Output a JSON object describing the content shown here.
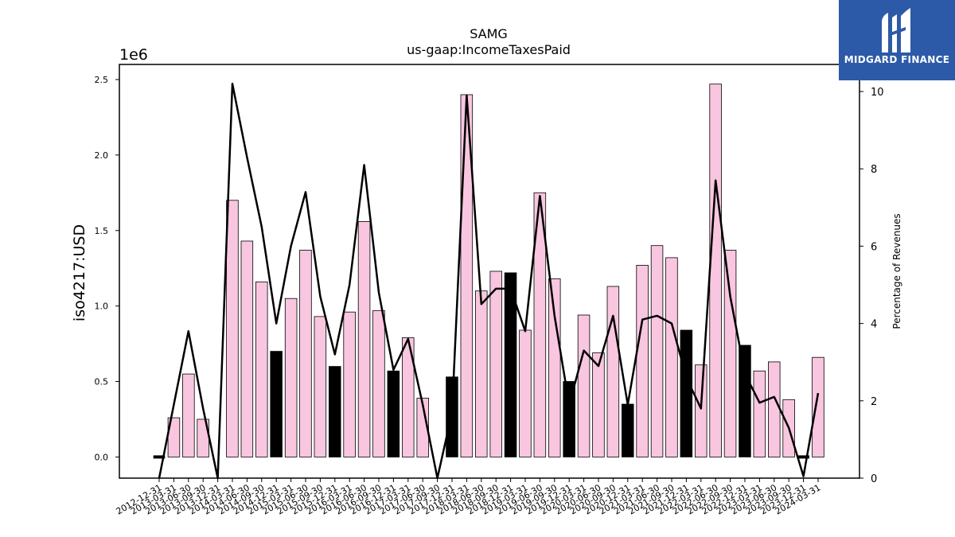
{
  "chart_data": {
    "type": "bar",
    "title": "SAMG",
    "subtitle": "us-gaap:IncomeTaxesPaid",
    "ylabel": "iso4217:USD",
    "y_multiplier_label": "1e6",
    "y2label": "Percentage of Revenues",
    "ylim": [
      -0.14,
      2.6
    ],
    "y_ticks": [
      "0.0",
      "0.5",
      "1.0",
      "1.5",
      "2.0",
      "2.5"
    ],
    "y2lim": [
      0,
      10.7
    ],
    "y2_ticks": [
      "0",
      "2",
      "4",
      "6",
      "8",
      "10"
    ],
    "categories": [
      "2012-12-31",
      "2013-03-31",
      "2013-06-30",
      "2013-09-30",
      "2013-12-31",
      "2014-03-31",
      "2014-06-30",
      "2014-09-30",
      "2014-12-31",
      "2015-03-31",
      "2015-06-30",
      "2015-09-30",
      "2015-12-31",
      "2016-03-31",
      "2016-06-30",
      "2016-09-30",
      "2016-12-31",
      "2017-03-31",
      "2017-06-30",
      "2017-09-30",
      "2017-12-31",
      "2018-03-31",
      "2018-06-30",
      "2018-09-30",
      "2018-12-31",
      "2019-03-31",
      "2019-06-30",
      "2019-09-30",
      "2019-12-31",
      "2020-03-31",
      "2020-06-30",
      "2020-09-30",
      "2020-12-31",
      "2021-03-31",
      "2021-06-30",
      "2021-09-30",
      "2021-12-31",
      "2022-03-31",
      "2022-06-30",
      "2022-09-30",
      "2022-12-31",
      "2023-03-31",
      "2023-06-30",
      "2023-09-30",
      "2023-12-31",
      "2024-03-31"
    ],
    "series": [
      {
        "values": [
          0,
          0.26,
          0.55,
          0.25,
          0,
          1.7,
          1.43,
          1.16,
          0.7,
          1.05,
          1.37,
          0.93,
          0.6,
          0.96,
          1.56,
          0.97,
          0.57,
          0.79,
          0.39,
          0,
          0.53,
          2.4,
          1.1,
          1.23,
          1.22,
          0.84,
          1.75,
          1.18,
          0.5,
          0.94,
          0.69,
          1.13,
          0.35,
          1.27,
          1.4,
          1.32,
          0.84,
          0.61,
          2.47,
          1.37,
          0.74,
          0.57,
          0.63,
          0.38,
          0,
          0.66
        ],
        "highlight": [
          false,
          false,
          false,
          false,
          false,
          false,
          false,
          false,
          true,
          false,
          false,
          false,
          true,
          false,
          false,
          false,
          true,
          false,
          false,
          false,
          true,
          false,
          false,
          false,
          true,
          false,
          false,
          false,
          true,
          false,
          false,
          false,
          true,
          false,
          false,
          false,
          true,
          false,
          false,
          false,
          true,
          false,
          false,
          false,
          false,
          false
        ],
        "color": "#f9c6e0",
        "highlight_color": "#000000"
      },
      {
        "name": "Percentage of Revenues",
        "axis": "right",
        "type": "line",
        "color": "#000000",
        "values": [
          0,
          1.9,
          3.8,
          1.8,
          0,
          10.2,
          8.3,
          6.5,
          4.0,
          6.0,
          7.4,
          4.7,
          3.2,
          5.0,
          8.1,
          4.8,
          2.8,
          3.6,
          1.9,
          0,
          1.7,
          9.9,
          4.5,
          4.9,
          4.9,
          3.8,
          7.3,
          4.2,
          1.9,
          3.3,
          2.9,
          4.2,
          1.9,
          4.1,
          4.2,
          4.0,
          2.6,
          1.8,
          7.7,
          4.7,
          2.7,
          1.95,
          2.1,
          1.3,
          0.05,
          2.2
        ]
      }
    ],
    "zero_markers": [
      "2012-12-31",
      "2023-12-31"
    ],
    "legend": "none"
  },
  "logo": {
    "text": "MIDGARD FINANCE",
    "bg": "#2c5aa8"
  }
}
